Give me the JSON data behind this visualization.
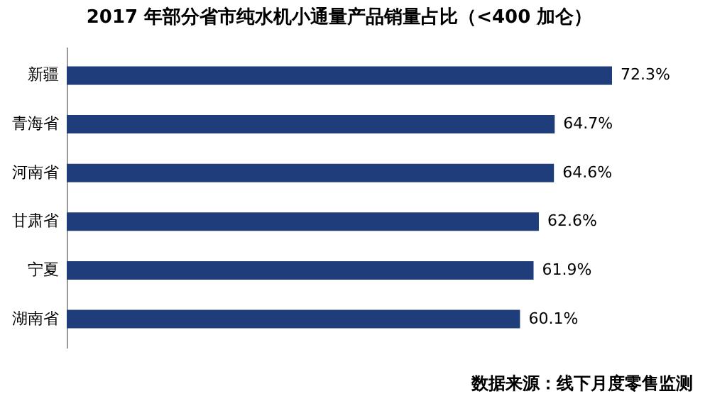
{
  "chart_data": {
    "type": "bar",
    "orientation": "horizontal",
    "title": "2017 年部分省市纯水机小通量产品销量占比（<400 加仑）",
    "categories": [
      "新疆",
      "青海省",
      "河南省",
      "甘肃省",
      "宁夏",
      "湖南省"
    ],
    "values": [
      72.3,
      64.7,
      64.6,
      62.6,
      61.9,
      60.1
    ],
    "value_labels": [
      "72.3%",
      "64.7%",
      "64.6%",
      "62.6%",
      "61.9%",
      "60.1%"
    ],
    "color": "#1f3d7a",
    "annotations": [
      "数据来源：线下月度零售监测"
    ]
  }
}
